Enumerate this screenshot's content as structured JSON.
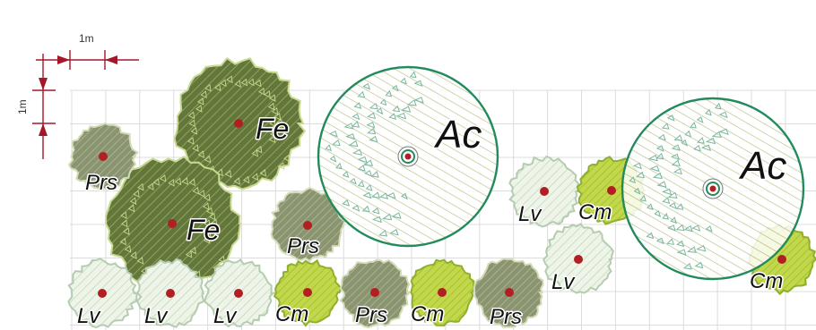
{
  "scale": {
    "horizontal_label": "1m",
    "vertical_label": "1m",
    "color": "#a5162a"
  },
  "grid": {
    "color": "#dcdcdc"
  },
  "colors": {
    "Fe": {
      "fill": "#63773c",
      "edge": "#c9d98f"
    },
    "Prs": {
      "fill": "#8a9470",
      "edge": "#d3dbb8"
    },
    "Lv": {
      "fill": "#e3eedb",
      "edge": "#b5ccb1"
    },
    "Cm": {
      "fill": "#bfd646",
      "edge": "#8fb02d"
    },
    "Ac": {
      "ring": "#238a5b",
      "hatch": "#a6ad65",
      "fleck": "#79b7a0"
    },
    "center_dot": "#b11f23"
  },
  "plants": [
    {
      "code": "Ac",
      "kind": "Ac"
    },
    {
      "code": "Ac",
      "kind": "Ac"
    },
    {
      "code": "Fe",
      "kind": "Fe"
    },
    {
      "code": "Fe",
      "kind": "Fe"
    },
    {
      "code": "Prs",
      "kind": "Prs"
    },
    {
      "code": "Prs",
      "kind": "Prs"
    },
    {
      "code": "Prs",
      "kind": "Prs"
    },
    {
      "code": "Prs",
      "kind": "Prs"
    },
    {
      "code": "Lv",
      "kind": "Lv"
    },
    {
      "code": "Lv",
      "kind": "Lv"
    },
    {
      "code": "Lv",
      "kind": "Lv"
    },
    {
      "code": "Lv",
      "kind": "Lv"
    },
    {
      "code": "Lv",
      "kind": "Lv"
    },
    {
      "code": "Cm",
      "kind": "Cm"
    },
    {
      "code": "Cm",
      "kind": "Cm"
    },
    {
      "code": "Cm",
      "kind": "Cm"
    },
    {
      "code": "Cm",
      "kind": "Cm"
    }
  ]
}
